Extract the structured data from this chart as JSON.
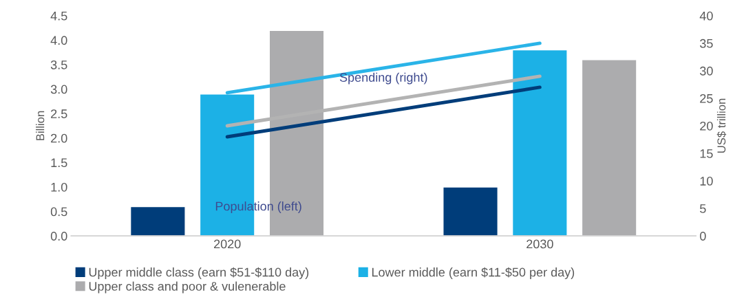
{
  "chart_data": {
    "type": "bar",
    "categories": [
      "2020",
      "2030"
    ],
    "ylabel": "Billion",
    "y2label": "US$ trillion",
    "ylim": [
      0,
      4.5
    ],
    "yticks": [
      {
        "value": 0,
        "label": "0.0"
      },
      0.5,
      {
        "value": 1,
        "label": "1.0"
      },
      1.5,
      {
        "value": 2,
        "label": "2.0"
      },
      2.5,
      {
        "value": 3,
        "label": "3.0"
      },
      3.5,
      {
        "value": 4,
        "label": "4.0"
      },
      4.5
    ],
    "y2lim": [
      0,
      40
    ],
    "y2ticks": [
      0,
      5,
      10,
      15,
      20,
      25,
      30,
      35,
      40
    ],
    "series": [
      {
        "name": "Upper middle class (earn $51-$110 day)",
        "color": "#003d7a",
        "values": [
          0.6,
          1.0
        ]
      },
      {
        "name": "Lower middle (earn $11-$50 per day)",
        "color": "#1cb1e6",
        "values": [
          2.9,
          3.8
        ]
      },
      {
        "name": "Upper class and poor & vulenerable",
        "color": "#acacae",
        "values": [
          4.2,
          3.6
        ]
      },
      {
        "type": "line",
        "axis": "y2",
        "color": "#2ab4e8",
        "values": [
          26,
          35
        ]
      },
      {
        "type": "line",
        "axis": "y2",
        "color": "#b3b3b3",
        "values": [
          20,
          29
        ]
      },
      {
        "type": "line",
        "axis": "y2",
        "color": "#003d7a",
        "values": [
          18,
          27
        ]
      }
    ],
    "annotations": [
      "Spending (right)",
      "Population (left)"
    ],
    "legend": "bottom",
    "grid": false,
    "line_style": "solid",
    "marker": "none"
  }
}
